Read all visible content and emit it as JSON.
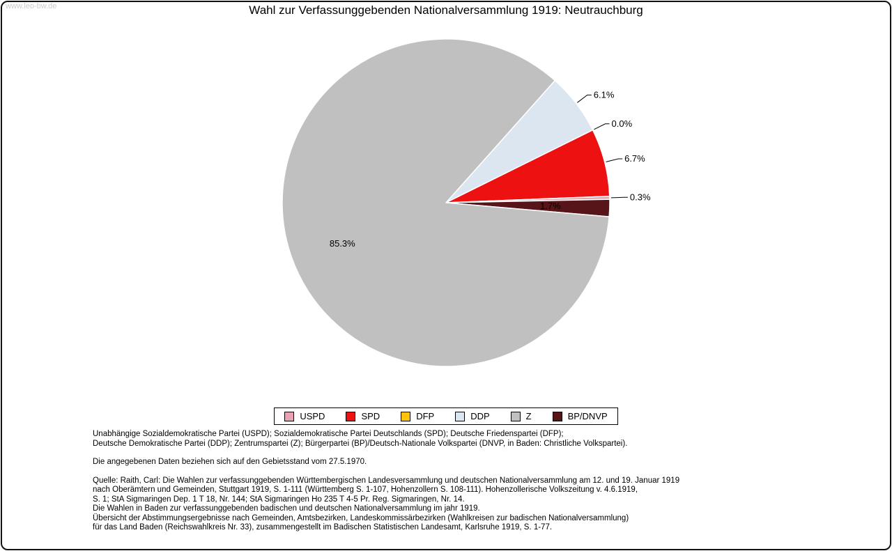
{
  "watermark": "www.leo-bw.de",
  "title": "Wahl zur Verfassunggebenden Nationalversammlung 1919: Neutrauchburg",
  "chart_data": {
    "type": "pie",
    "title": "Wahl zur Verfassunggebenden Nationalversammlung 1919: Neutrauchburg",
    "slices": [
      {
        "label": "USPD",
        "value": 0.3,
        "color": "#e9a2b2",
        "label_text": "0.3%",
        "label_style": "callout"
      },
      {
        "label": "SPD",
        "value": 6.7,
        "color": "#ee1111",
        "label_text": "6.7%",
        "label_style": "callout"
      },
      {
        "label": "DFP",
        "value": 0.0,
        "color": "#ffc20e",
        "label_text": "0.0%",
        "label_style": "callout"
      },
      {
        "label": "DDP",
        "value": 6.1,
        "color": "#dce6f1",
        "label_text": "6.1%",
        "label_style": "callout"
      },
      {
        "label": "Z",
        "value": 85.3,
        "color": "#c0c0c0",
        "label_text": "85.3%",
        "label_style": "inside",
        "label_radius": 160
      },
      {
        "label": "BP/DNVP",
        "value": 1.7,
        "color": "#571519",
        "label_text": "1.7%",
        "label_style": "inside",
        "label_radius": 150
      }
    ],
    "draw_order": [
      "DDP",
      "DFP",
      "SPD",
      "USPD",
      "BP/DNVP",
      "Z"
    ],
    "legend_order": [
      "USPD",
      "SPD",
      "DFP",
      "DDP",
      "Z",
      "BP/DNVP"
    ],
    "start_angle_deg": 48.3,
    "center": [
      640,
      291
    ],
    "radius": 235,
    "legend_position": "bottom-center",
    "slice_border_color": "#ffffff"
  },
  "footnotes": {
    "abbrev_lines": [
      "Unabhängige Sozialdemokratische Partei (USPD); Sozialdemokratische Partei Deutschlands (SPD); Deutsche Friedenspartei (DFP);",
      "Deutsche Demokratische Partei (DDP); Zentrumspartei (Z); Bürgerpartei (BP)/Deutsch-Nationale Volkspartei (DNVP, in Baden: Christliche Volkspartei)."
    ],
    "note": "Die angegebenen Daten beziehen sich auf den Gebietsstand vom 27.5.1970.",
    "source_lines": [
      "Quelle: Raith, Carl: Die Wahlen zur verfassunggebenden Württembergischen Landesversammlung und deutschen Nationalversammlung am 12. und 19. Januar 1919",
      "nach Oberämtern und Gemeinden, Stuttgart 1919, S. 1-111 (Württemberg S. 1-107, Hohenzollern S. 108-111). Hohenzollerische Volkszeitung v. 4.6.1919,",
      "S. 1; StA Sigmaringen Dep. 1 T 18, Nr. 144; StA Sigmaringen Ho 235 T 4-5 Pr. Reg. Sigmaringen, Nr. 14.",
      "Die Wahlen in Baden zur verfassunggebenden badischen und deutschen Nationalversammlung im jahr 1919.",
      "Übersicht der Abstimmungsergebnisse nach Gemeinden, Amtsbezirken, Landeskommissärbezirken (Wahlkreisen zur badischen Nationalversammlung)",
      "für das Land Baden (Reichswahlkreis Nr. 33), zusammengestellt im Badischen Statistischen Landesamt, Karlsruhe 1919, S. 1-77."
    ]
  }
}
